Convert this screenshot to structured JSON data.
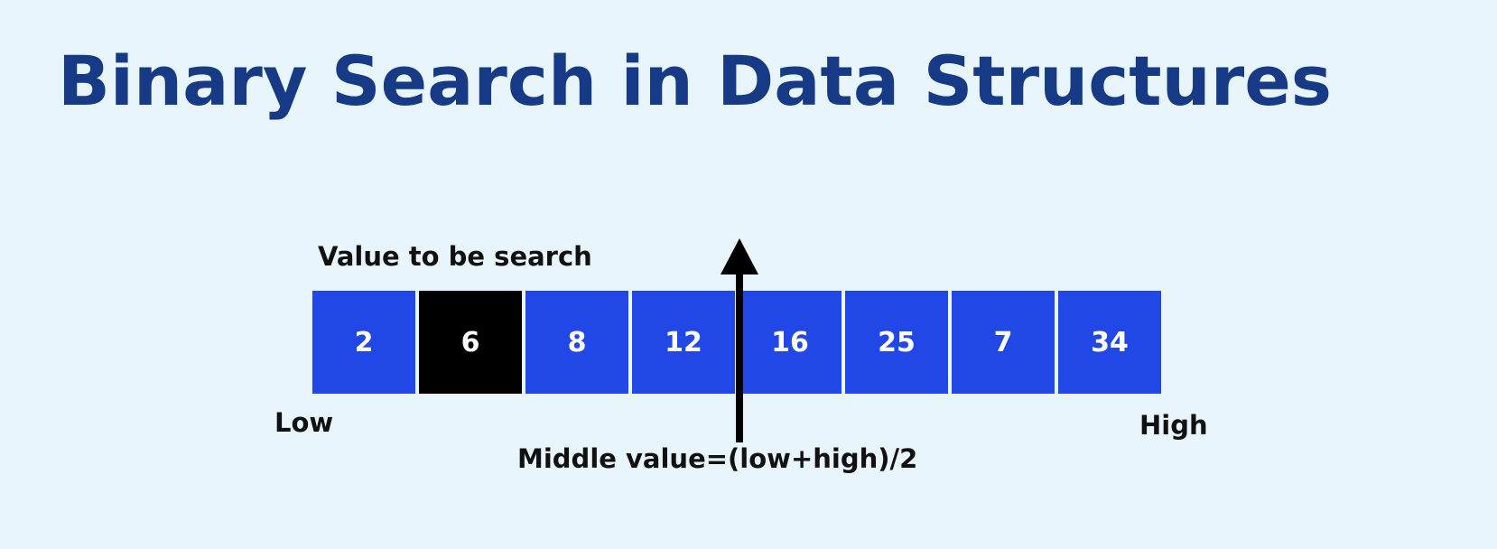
{
  "title": "Binary Search in Data Structures",
  "labels": {
    "target": "Value to be search",
    "low": "Low",
    "high": "High",
    "middle": "Middle value=(low+high)/2"
  },
  "array": {
    "values": [
      "2",
      "6",
      "8",
      "12",
      "16",
      "25",
      "7",
      "34"
    ],
    "highlighted_index": 1
  },
  "colors": {
    "background": "#e9f5fc",
    "title": "#173a86",
    "cell": "#2148e6",
    "highlight": "#000000",
    "text": "#111111"
  }
}
